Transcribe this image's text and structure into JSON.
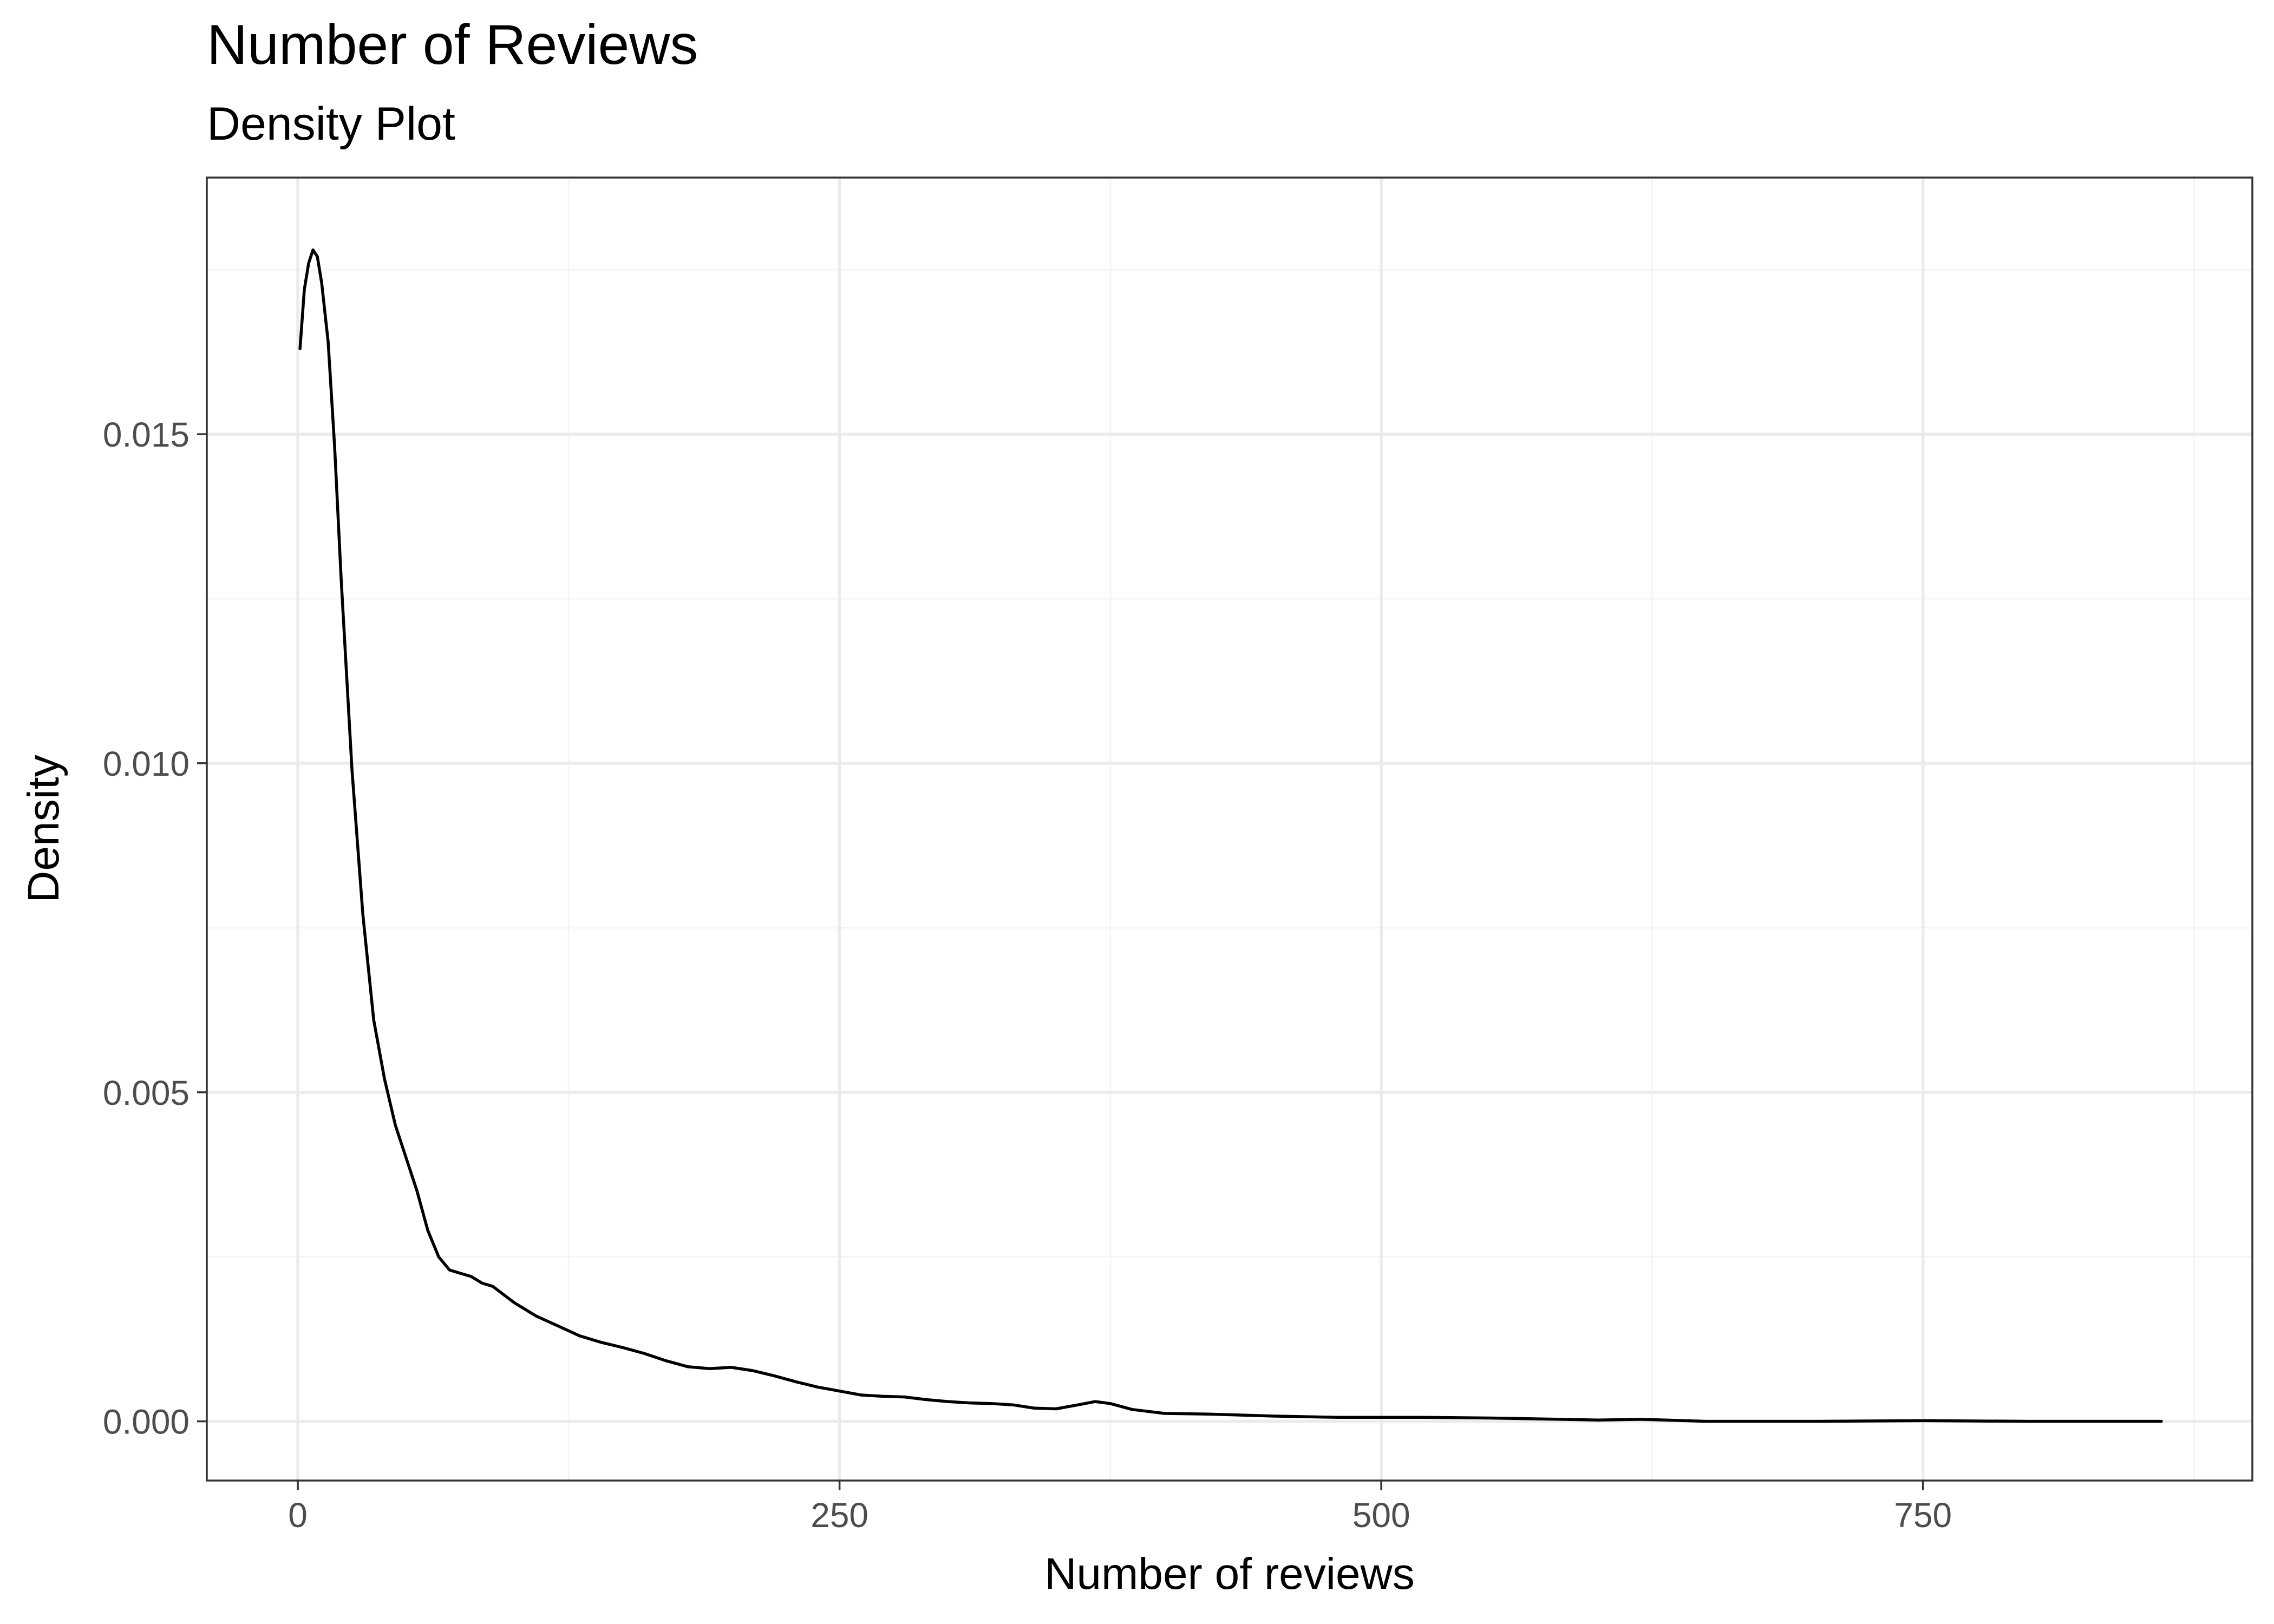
{
  "chart_data": {
    "type": "line",
    "title": "Number of Reviews",
    "subtitle": "Density Plot",
    "xlabel": "Number of reviews",
    "ylabel": "Density",
    "xlim": [
      -42,
      902
    ],
    "ylim": [
      -0.0009,
      0.0189
    ],
    "xticks": [
      0,
      250,
      500,
      750
    ],
    "xtick_labels": [
      "0",
      "250",
      "500",
      "750"
    ],
    "yticks": [
      0.0,
      0.005,
      0.01,
      0.015
    ],
    "ytick_labels": [
      "0.000",
      "0.005",
      "0.010",
      "0.015"
    ],
    "grid": true,
    "series": [
      {
        "x": [
          1,
          3,
          5,
          7,
          9,
          11,
          14,
          17,
          20,
          25,
          30,
          35,
          40,
          45,
          50,
          55,
          60,
          65,
          70,
          75,
          80,
          85,
          90,
          100,
          110,
          120,
          130,
          140,
          150,
          160,
          170,
          180,
          190,
          200,
          210,
          220,
          230,
          240,
          250,
          260,
          270,
          280,
          290,
          300,
          310,
          320,
          330,
          340,
          350,
          360,
          368,
          375,
          385,
          400,
          420,
          450,
          480,
          500,
          520,
          550,
          600,
          620,
          650,
          700,
          750,
          800,
          860
        ],
        "y": [
          0.0163,
          0.0172,
          0.0176,
          0.0178,
          0.0177,
          0.0173,
          0.0164,
          0.0148,
          0.0128,
          0.0099,
          0.0077,
          0.0061,
          0.0052,
          0.0045,
          0.004,
          0.0035,
          0.0029,
          0.0025,
          0.0023,
          0.00225,
          0.0022,
          0.0021,
          0.00205,
          0.0018,
          0.0016,
          0.00145,
          0.0013,
          0.0012,
          0.00112,
          0.00103,
          0.00092,
          0.00083,
          0.0008,
          0.00082,
          0.00077,
          0.00069,
          0.0006,
          0.00052,
          0.00046,
          0.0004,
          0.00038,
          0.00037,
          0.00033,
          0.0003,
          0.00028,
          0.00027,
          0.00025,
          0.0002,
          0.00019,
          0.00025,
          0.0003,
          0.00027,
          0.00018,
          0.00012,
          0.00011,
          8e-05,
          6e-05,
          6e-05,
          6e-05,
          5e-05,
          2e-05,
          3e-05,
          0.0,
          0.0,
          1e-05,
          0.0,
          0.0
        ]
      }
    ],
    "colors": {
      "line": "#000000",
      "panel_border": "#333333",
      "grid_major": "#ebebeb",
      "grid_minor": "#f5f5f5",
      "tick_text": "#4d4d4d",
      "background": "#ffffff"
    }
  }
}
